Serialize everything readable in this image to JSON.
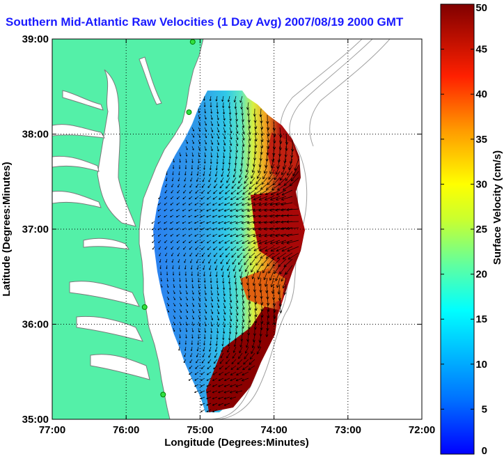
{
  "chart_data": {
    "type": "map-vector-field",
    "title": "Southern Mid-Atlantic Raw Velocities (1 Day Avg) 2007/08/19 2000 GMT",
    "xlabel": "Longitude (Degrees:Minutes)",
    "ylabel": "Latitude (Degrees:Minutes)",
    "x_tick_labels": [
      "77:00",
      "76:00",
      "75:00",
      "74:00",
      "73:00",
      "72:00"
    ],
    "y_tick_labels": [
      "39:00",
      "38:00",
      "37:00",
      "36:00",
      "35:00"
    ],
    "x_ticks_deg_west": [
      77,
      76,
      75,
      74,
      73,
      72
    ],
    "y_ticks_deg_north": [
      39,
      38,
      37,
      36,
      35
    ],
    "xlim_deg_west": [
      77,
      72
    ],
    "ylim_deg_north": [
      35,
      39
    ],
    "grid": true,
    "colorbar": {
      "label": "Surface Velocity (cm/s)",
      "ticks": [
        0,
        5,
        10,
        15,
        20,
        25,
        30,
        35,
        40,
        45,
        50
      ],
      "range": [
        0,
        50
      ],
      "colormap": "jet"
    },
    "stations": [
      {
        "lon": 75.1,
        "lat": 38.97
      },
      {
        "lon": 75.15,
        "lat": 38.23
      },
      {
        "lon": 75.75,
        "lat": 36.18
      },
      {
        "lon": 75.5,
        "lat": 35.26
      }
    ],
    "colors": {
      "land": "#54f0a8",
      "title": "#1a1aff",
      "coastline_outline": "#7a7a7a",
      "bathymetry": "#a0a0a0"
    }
  }
}
